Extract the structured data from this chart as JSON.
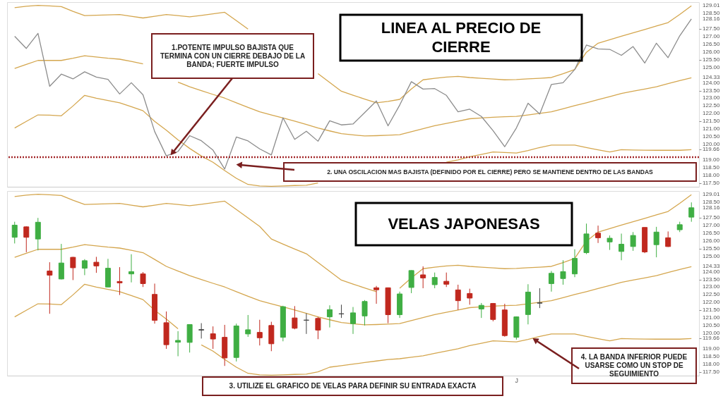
{
  "chart_data": [
    {
      "type": "line",
      "title": "LINEA AL PRECIO DE CIERRE",
      "categories": [
        null,
        null,
        null,
        null,
        null,
        null,
        null,
        null,
        null,
        null,
        null,
        null,
        null,
        null,
        null,
        null,
        null,
        null,
        null,
        null,
        null,
        null,
        null,
        null,
        null,
        null,
        null,
        null,
        null,
        null,
        null,
        null,
        null,
        null,
        null,
        null,
        null,
        null,
        null,
        null,
        null,
        null,
        null,
        null,
        null,
        null,
        null,
        null,
        null,
        null,
        null,
        null,
        null,
        null,
        null,
        null,
        null,
        null,
        null
      ],
      "series": [
        {
          "color": "#d4a64e",
          "values": [
            128.89,
            128.98,
            129.04,
            129.0,
            128.96,
            128.65,
            128.37,
            128.4,
            128.42,
            128.44,
            128.33,
            128.22,
            128.33,
            128.44,
            128.37,
            128.29,
            128.39,
            128.49,
            128.59,
            128.05,
            127.5,
            null,
            null,
            null,
            null,
            null,
            124.6,
            124.03,
            123.46,
            123.2,
            122.95,
            122.71,
            122.8,
            122.93,
            123.6,
            124.2,
            124.3,
            124.38,
            124.42,
            124.35,
            124.3,
            124.25,
            124.2,
            124.22,
            124.26,
            124.3,
            124.35,
            124.6,
            124.87,
            125.99,
            126.58,
            126.8,
            127.03,
            127.25,
            127.47,
            127.7,
            127.92,
            128.45,
            129.01
          ]
        },
        {
          "color": "#d4a64e",
          "values": [
            124.94,
            125.2,
            125.46,
            125.46,
            125.46,
            125.6,
            125.76,
            125.68,
            125.6,
            125.54,
            125.4,
            125.24,
            null,
            null,
            124.05,
            123.75,
            123.5,
            123.25,
            123.01,
            122.71,
            122.41,
            122.12,
            121.92,
            121.72,
            121.52,
            121.3,
            121.07,
            120.88,
            120.7,
            120.62,
            120.55,
            120.57,
            120.6,
            120.63,
            120.83,
            121.02,
            121.22,
            121.37,
            121.52,
            121.67,
            121.72,
            121.77,
            121.8,
            121.82,
            121.92,
            122.02,
            122.12,
            122.32,
            122.52,
            122.71,
            122.91,
            123.11,
            123.31,
            123.46,
            123.6,
            123.75,
            123.95,
            124.15,
            124.33
          ]
        },
        {
          "color": "#d4a64e",
          "values": [
            121.07,
            121.5,
            121.92,
            121.9,
            121.86,
            122.5,
            123.19,
            123.0,
            122.85,
            122.71,
            122.45,
            122.19,
            121.5,
            120.93,
            120.3,
            119.74,
            119.25,
            118.84,
            118.3,
            117.8,
            117.4,
            117.3,
            117.28,
            117.3,
            117.33,
            117.35,
            117.5,
            null,
            null,
            null,
            null,
            null,
            null,
            null,
            null,
            null,
            null,
            118.85,
            119.0,
            119.2,
            119.35,
            119.51,
            119.48,
            119.44,
            119.6,
            119.8,
            119.96,
            119.96,
            119.96,
            119.8,
            119.65,
            119.51,
            119.66,
            119.64,
            119.63,
            119.62,
            119.62,
            119.62,
            119.66
          ]
        },
        {
          "color": "#8c8c8c",
          "values": [
            127.03,
            126.24,
            127.22,
            123.78,
            124.57,
            124.26,
            124.72,
            124.38,
            124.23,
            123.28,
            124.01,
            123.23,
            120.84,
            119.26,
            119.54,
            120.57,
            120.24,
            119.63,
            118.4,
            120.48,
            120.23,
            119.71,
            119.32,
            121.73,
            120.33,
            120.86,
            120.21,
            121.54,
            121.27,
            121.33,
            122.07,
            122.83,
            121.21,
            122.56,
            124.08,
            123.6,
            123.63,
            123.19,
            122.12,
            122.29,
            121.82,
            120.9,
            119.85,
            121.07,
            122.68,
            121.98,
            123.9,
            124.01,
            124.87,
            126.46,
            126.21,
            126.18,
            125.79,
            126.36,
            125.29,
            126.58,
            125.64,
            127.06,
            128.16
          ]
        }
      ],
      "ylim": [
        117.25,
        129.25
      ],
      "yticks": [
        {
          "value": 117.5,
          "label": "117.50"
        },
        {
          "value": 118,
          "label": "118.00"
        },
        {
          "value": 118.5,
          "label": "118.50"
        },
        {
          "value": 119,
          "label": "119.00"
        },
        {
          "value": 119.66,
          "label": "119.66"
        },
        {
          "value": 120,
          "label": "120.00"
        },
        {
          "value": 120.5,
          "label": "120.50"
        },
        {
          "value": 121,
          "label": "121.00"
        },
        {
          "value": 121.5,
          "label": "121.50"
        },
        {
          "value": 122,
          "label": "122.00"
        },
        {
          "value": 122.5,
          "label": "122.50"
        },
        {
          "value": 123,
          "label": "123.00"
        },
        {
          "value": 123.5,
          "label": "123.50"
        },
        {
          "value": 124,
          "label": "124.00"
        },
        {
          "value": 124.33,
          "label": "124.33"
        },
        {
          "value": 125,
          "label": "125.00"
        },
        {
          "value": 125.5,
          "label": "125.50"
        },
        {
          "value": 126,
          "label": "126.00"
        },
        {
          "value": 126.5,
          "label": "126.50"
        },
        {
          "value": 127,
          "label": "127.00"
        },
        {
          "value": 127.5,
          "label": "127.50"
        },
        {
          "value": 128.16,
          "label": "128.16"
        },
        {
          "value": 128.5,
          "label": "128.50"
        },
        {
          "value": 129.01,
          "label": "129.01"
        }
      ],
      "tick_labels": "y",
      "ref_lines": [
        {
          "axis": "y",
          "value": 119.17,
          "color": "#a3282a",
          "line_style": "dotted"
        }
      ],
      "annotations": [
        "1.POTENTE IMPULSO BAJISTA QUE TERMINA CON UN CIERRE DEBAJO DE LA BANDA; FUERTE IMPULSO",
        "2. UNA OSCILACION MAS BAJISTA (DEFINIDO POR EL CIERRE) PERO SE MANTIENE DENTRO DE LAS BANDAS"
      ]
    },
    {
      "type": "candlestick",
      "title": "VELAS JAPONESAS",
      "categories": [
        null,
        null,
        null,
        null,
        null,
        null,
        null,
        null,
        null,
        null,
        null,
        null,
        null,
        null,
        null,
        null,
        null,
        null,
        null,
        null,
        null,
        null,
        null,
        null,
        null,
        null,
        null,
        null,
        null,
        null,
        null,
        null,
        null,
        null,
        null,
        null,
        null,
        null,
        null,
        null,
        null,
        null,
        null,
        "J",
        null,
        null,
        null,
        null,
        null,
        null,
        null,
        null,
        null,
        null,
        null,
        null,
        null,
        null,
        null
      ],
      "ohlc": [
        [
          126.24,
          127.25,
          125.84,
          127.03
        ],
        [
          126.92,
          126.95,
          125.27,
          126.24
        ],
        [
          126.13,
          127.5,
          125.39,
          127.22
        ],
        [
          124.05,
          124.62,
          121.27,
          123.78
        ],
        [
          123.53,
          125.81,
          123.5,
          124.57
        ],
        [
          124.94,
          124.97,
          123.46,
          124.26
        ],
        [
          124.23,
          124.82,
          123.78,
          124.72
        ],
        [
          124.62,
          124.97,
          123.93,
          124.38
        ],
        [
          123.01,
          124.84,
          123.0,
          124.23
        ],
        [
          123.37,
          124.3,
          122.49,
          123.28
        ],
        [
          123.86,
          125.14,
          123.31,
          124.01
        ],
        [
          123.86,
          123.98,
          123.01,
          123.23
        ],
        [
          122.53,
          123.23,
          120.63,
          120.84
        ],
        [
          120.69,
          121.42,
          118.99,
          119.26
        ],
        [
          119.42,
          120.14,
          118.51,
          119.54
        ],
        [
          119.41,
          120.58,
          118.75,
          120.57
        ],
        [
          120.21,
          120.66,
          119.66,
          120.24
        ],
        [
          119.97,
          120.45,
          118.99,
          119.63
        ],
        [
          119.74,
          120.55,
          117.88,
          118.4
        ],
        [
          118.43,
          120.63,
          118.17,
          120.48
        ],
        [
          119.96,
          121.19,
          119.77,
          120.23
        ],
        [
          120.06,
          120.88,
          119.21,
          119.71
        ],
        [
          120.51,
          120.75,
          118.84,
          119.32
        ],
        [
          119.74,
          121.79,
          119.48,
          121.73
        ],
        [
          121.0,
          121.77,
          120.26,
          120.33
        ],
        [
          120.85,
          121.3,
          119.96,
          120.86
        ],
        [
          120.97,
          121.07,
          119.62,
          120.21
        ],
        [
          121.07,
          121.82,
          120.38,
          121.54
        ],
        [
          121.26,
          121.86,
          121.0,
          121.27
        ],
        [
          120.63,
          121.71,
          119.96,
          121.33
        ],
        [
          121.13,
          122.16,
          120.51,
          122.07
        ],
        [
          122.96,
          123.08,
          121.92,
          122.83
        ],
        [
          122.96,
          122.98,
          120.66,
          121.21
        ],
        [
          121.21,
          122.71,
          121.0,
          122.56
        ],
        [
          122.98,
          124.1,
          122.61,
          124.08
        ],
        [
          123.8,
          124.35,
          122.93,
          123.6
        ],
        [
          123.16,
          123.95,
          122.93,
          123.63
        ],
        [
          123.38,
          123.95,
          123.01,
          123.19
        ],
        [
          122.82,
          123.16,
          121.52,
          122.12
        ],
        [
          122.59,
          122.9,
          121.86,
          122.29
        ],
        [
          121.58,
          121.97,
          121.0,
          121.82
        ],
        [
          121.94,
          121.97,
          120.78,
          120.9
        ],
        [
          121.52,
          121.92,
          119.78,
          119.85
        ],
        [
          119.74,
          121.1,
          119.59,
          121.07
        ],
        [
          121.22,
          123.19,
          120.58,
          122.68
        ],
        [
          121.96,
          122.93,
          121.64,
          121.98
        ],
        [
          123.23,
          124.05,
          122.71,
          123.9
        ],
        [
          123.56,
          124.75,
          123.16,
          124.01
        ],
        [
          123.86,
          125.46,
          123.65,
          124.87
        ],
        [
          125.24,
          127.13,
          125.15,
          126.46
        ],
        [
          126.51,
          127.0,
          125.87,
          126.21
        ],
        [
          125.94,
          126.36,
          125.42,
          126.18
        ],
        [
          125.32,
          126.48,
          124.75,
          125.79
        ],
        [
          125.64,
          126.58,
          125.36,
          126.36
        ],
        [
          126.88,
          126.88,
          125.21,
          125.29
        ],
        [
          125.76,
          126.92,
          124.94,
          126.58
        ],
        [
          126.21,
          126.62,
          125.61,
          125.64
        ],
        [
          126.73,
          127.25,
          126.58,
          127.06
        ],
        [
          127.55,
          128.51,
          127.25,
          128.16
        ]
      ],
      "colors": [
        "#3fae43",
        "#c0281e",
        "#3fae43",
        "#c0281e",
        "#3fae43",
        "#c0281e",
        "#3fae43",
        "#c0281e",
        "#3fae43",
        "#c0281e",
        "#3fae43",
        "#c0281e",
        "#c0281e",
        "#c0281e",
        "#3fae43",
        "#3fae43",
        "#444444",
        "#c0281e",
        "#c0281e",
        "#3fae43",
        "#3fae43",
        "#c0281e",
        "#c0281e",
        "#3fae43",
        "#c0281e",
        "#444444",
        "#c0281e",
        "#3fae43",
        "#444444",
        "#3fae43",
        "#3fae43",
        "#c0281e",
        "#c0281e",
        "#3fae43",
        "#3fae43",
        "#c0281e",
        "#3fae43",
        "#c0281e",
        "#c0281e",
        "#c0281e",
        "#3fae43",
        "#c0281e",
        "#c0281e",
        "#3fae43",
        "#3fae43",
        "#444444",
        "#3fae43",
        "#3fae43",
        "#3fae43",
        "#3fae43",
        "#c0281e",
        "#3fae43",
        "#3fae43",
        "#3fae43",
        "#c0281e",
        "#3fae43",
        "#c0281e",
        "#3fae43",
        "#3fae43"
      ],
      "series": [
        {
          "type": "line",
          "color": "#d4a64e",
          "values": [
            128.89,
            128.98,
            129.04,
            129.0,
            128.96,
            128.65,
            128.37,
            128.4,
            128.42,
            128.44,
            128.33,
            128.22,
            128.33,
            128.44,
            128.37,
            128.29,
            128.39,
            128.49,
            128.59,
            128.05,
            127.5,
            126.95,
            126.13,
            125.8,
            125.48,
            125.17,
            124.6,
            124.03,
            123.46,
            123.2,
            122.95,
            122.71,
            null,
            122.93,
            123.6,
            124.2,
            124.3,
            124.38,
            124.42,
            124.35,
            124.3,
            124.25,
            124.2,
            124.22,
            124.26,
            124.3,
            124.35,
            124.6,
            124.87,
            125.99,
            126.58,
            126.8,
            127.03,
            127.25,
            127.47,
            127.7,
            127.92,
            128.45,
            129.01
          ]
        },
        {
          "type": "line",
          "color": "#d4a64e",
          "values": [
            124.94,
            125.2,
            125.46,
            125.46,
            125.46,
            125.6,
            125.76,
            125.68,
            125.6,
            125.54,
            125.4,
            125.24,
            124.8,
            124.35,
            124.05,
            123.75,
            123.5,
            123.25,
            123.01,
            122.71,
            122.41,
            122.12,
            121.92,
            121.72,
            121.52,
            121.3,
            121.07,
            120.88,
            120.7,
            120.62,
            120.55,
            120.57,
            120.6,
            120.63,
            120.83,
            121.02,
            121.22,
            121.37,
            121.52,
            121.67,
            121.72,
            121.77,
            121.8,
            121.82,
            121.92,
            122.02,
            122.12,
            122.32,
            122.52,
            122.71,
            122.91,
            123.11,
            123.31,
            123.46,
            123.6,
            123.75,
            123.95,
            124.15,
            124.33
          ]
        },
        {
          "type": "line",
          "color": "#d4a64e",
          "values": [
            121.07,
            121.5,
            121.92,
            121.9,
            121.86,
            122.5,
            123.19,
            123.0,
            122.85,
            122.71,
            122.45,
            122.19,
            121.5,
            120.93,
            120.3,
            null,
            119.25,
            118.84,
            118.3,
            117.8,
            117.4,
            117.3,
            117.28,
            117.3,
            117.33,
            117.35,
            117.5,
            117.8,
            117.9,
            118.0,
            118.1,
            118.2,
            118.3,
            118.35,
            118.45,
            118.54,
            118.7,
            118.85,
            119.0,
            119.2,
            119.35,
            119.51,
            119.48,
            119.44,
            119.6,
            119.8,
            119.96,
            119.96,
            119.96,
            119.8,
            119.65,
            119.51,
            119.66,
            119.64,
            119.63,
            119.62,
            119.62,
            119.62,
            119.66
          ]
        }
      ],
      "ylim": [
        117.25,
        129.25
      ],
      "yticks": [
        {
          "value": 117.5,
          "label": "117.50"
        },
        {
          "value": 118,
          "label": "118.00"
        },
        {
          "value": 118.5,
          "label": "118.50"
        },
        {
          "value": 119,
          "label": "119.00"
        },
        {
          "value": 119.66,
          "label": "119.66"
        },
        {
          "value": 120,
          "label": "120.00"
        },
        {
          "value": 120.5,
          "label": "120.50"
        },
        {
          "value": 121,
          "label": "121.00"
        },
        {
          "value": 121.5,
          "label": "121.50"
        },
        {
          "value": 122,
          "label": "122.00"
        },
        {
          "value": 122.5,
          "label": "122.50"
        },
        {
          "value": 123,
          "label": "123.00"
        },
        {
          "value": 123.5,
          "label": "123.50"
        },
        {
          "value": 124,
          "label": "124.00"
        },
        {
          "value": 124.33,
          "label": "124.33"
        },
        {
          "value": 125,
          "label": "125.00"
        },
        {
          "value": 125.5,
          "label": "125.50"
        },
        {
          "value": 126,
          "label": "126.00"
        },
        {
          "value": 126.5,
          "label": "126.50"
        },
        {
          "value": 127,
          "label": "127.00"
        },
        {
          "value": 127.5,
          "label": "127.50"
        },
        {
          "value": 128.16,
          "label": "128.16"
        },
        {
          "value": 128.5,
          "label": "128.50"
        },
        {
          "value": 129.01,
          "label": "129.01"
        }
      ],
      "annotations": [
        "3. UTILIZE EL GRAFICO DE VELAS PARA DEFINIR SU ENTRADA EXACTA",
        "4. LA BANDA INFERIOR PUEDE USARSE COMO UN STOP DE SEGUIMIENTO"
      ]
    }
  ]
}
